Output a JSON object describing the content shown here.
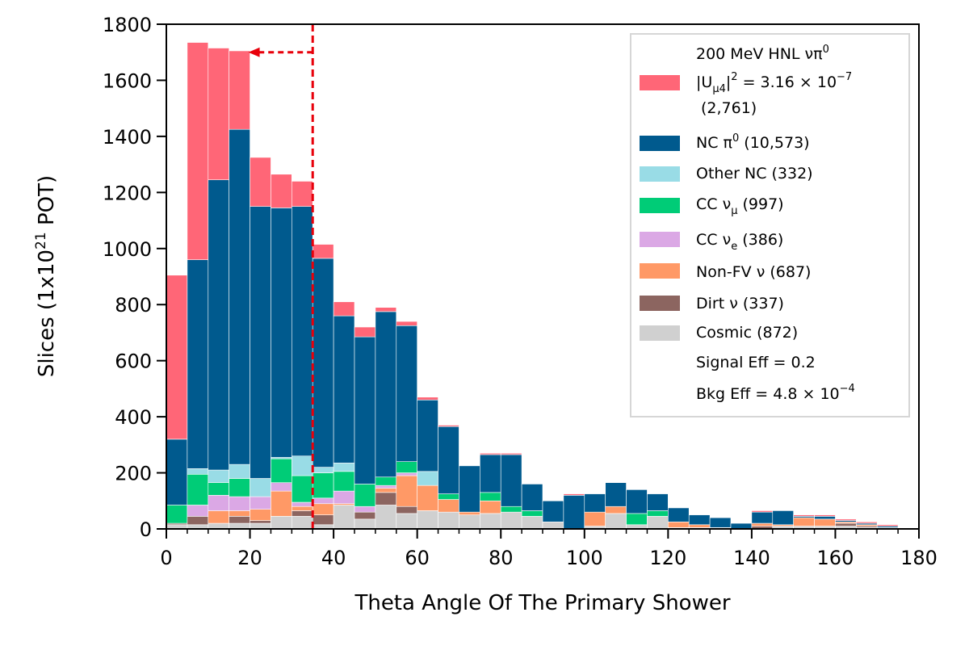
{
  "chart_data": {
    "type": "bar",
    "stacked": true,
    "xlabel": "Theta Angle Of The Primary Shower",
    "ylabel_prefix": "Slices (1x10",
    "ylabel_sup": "21",
    "ylabel_suffix": " POT)",
    "xlim": [
      0,
      180
    ],
    "ylim": [
      0,
      1800
    ],
    "x_ticks": [
      "0",
      "20",
      "40",
      "60",
      "80",
      "100",
      "120",
      "140",
      "160",
      "180"
    ],
    "y_ticks": [
      "0",
      "200",
      "400",
      "600",
      "800",
      "1000",
      "1200",
      "1400",
      "1600",
      "1800"
    ],
    "bin_width": 5,
    "bin_starts": [
      0,
      5,
      10,
      15,
      20,
      25,
      30,
      35,
      40,
      45,
      50,
      55,
      60,
      65,
      70,
      75,
      80,
      85,
      90,
      95,
      100,
      105,
      110,
      115,
      120,
      125,
      130,
      135,
      140,
      145,
      150,
      155,
      160,
      165,
      170
    ],
    "cut_line": {
      "x": 35,
      "color": "#e8000b",
      "arrow_direction": "left"
    },
    "series": [
      {
        "name": "Cosmic (872)",
        "color": "#d0d0d0",
        "values": [
          15,
          15,
          20,
          20,
          20,
          45,
          45,
          15,
          85,
          35,
          85,
          55,
          65,
          60,
          50,
          55,
          60,
          45,
          25,
          0,
          10,
          55,
          15,
          45,
          5,
          5,
          5,
          0,
          0,
          10,
          10,
          10,
          10,
          5,
          5
        ]
      },
      {
        "name": "Dirt ν (337)",
        "color": "#8c6560",
        "values": [
          5,
          30,
          0,
          25,
          10,
          0,
          20,
          35,
          0,
          25,
          45,
          25,
          0,
          0,
          0,
          0,
          0,
          0,
          0,
          0,
          0,
          0,
          0,
          0,
          0,
          0,
          0,
          0,
          10,
          0,
          0,
          0,
          10,
          5,
          0
        ]
      },
      {
        "name": "Non-FV ν (687)",
        "color": "#ff9966",
        "values": [
          0,
          0,
          45,
          20,
          40,
          90,
          15,
          40,
          5,
          0,
          15,
          110,
          90,
          45,
          10,
          45,
          0,
          0,
          0,
          0,
          50,
          25,
          0,
          0,
          20,
          10,
          0,
          0,
          10,
          5,
          30,
          25,
          5,
          5,
          0
        ]
      },
      {
        "name": "CC νe (386)",
        "color": "#dba8e5",
        "values": [
          0,
          40,
          55,
          50,
          45,
          30,
          15,
          20,
          45,
          20,
          10,
          10,
          0,
          0,
          0,
          0,
          0,
          0,
          0,
          0,
          0,
          0,
          0,
          0,
          0,
          0,
          0,
          0,
          0,
          0,
          0,
          0,
          0,
          0,
          0
        ]
      },
      {
        "name": "CC νμ (997)",
        "color": "#00cc77",
        "values": [
          65,
          110,
          45,
          65,
          0,
          85,
          95,
          90,
          70,
          80,
          30,
          40,
          0,
          20,
          0,
          30,
          20,
          20,
          0,
          0,
          0,
          0,
          40,
          20,
          0,
          0,
          0,
          0,
          0,
          0,
          0,
          0,
          0,
          0,
          0
        ]
      },
      {
        "name": "Other NC (332)",
        "color": "#99dce6",
        "values": [
          0,
          20,
          45,
          50,
          65,
          5,
          70,
          20,
          30,
          0,
          0,
          0,
          50,
          0,
          0,
          0,
          0,
          0,
          0,
          0,
          0,
          0,
          0,
          0,
          0,
          0,
          0,
          0,
          0,
          0,
          0,
          0,
          0,
          0,
          0
        ]
      },
      {
        "name": "NC π0 (10,573)",
        "color": "#005a8e",
        "values": [
          235,
          745,
          1035,
          1195,
          970,
          890,
          890,
          745,
          525,
          525,
          590,
          485,
          255,
          240,
          165,
          135,
          185,
          95,
          75,
          120,
          65,
          85,
          85,
          60,
          50,
          35,
          35,
          20,
          40,
          50,
          5,
          10,
          5,
          5,
          5
        ]
      },
      {
        "name": "200 MeV HNL νπ0 |Uμ4|² = 3.16×10⁻⁷ (2,761)",
        "color": "#ff6677",
        "values": [
          585,
          775,
          470,
          280,
          175,
          120,
          90,
          50,
          50,
          35,
          15,
          15,
          10,
          5,
          0,
          5,
          5,
          0,
          0,
          5,
          0,
          0,
          0,
          0,
          0,
          0,
          0,
          0,
          5,
          0,
          5,
          5,
          5,
          5,
          5
        ]
      }
    ],
    "legend": {
      "position": "top-right",
      "hnl_line1": "200 MeV HNL νπ",
      "hnl_line1_sup": "0",
      "hnl_line2": "|U",
      "hnl_line2_sub": "μ4",
      "hnl_line2_mid": "|",
      "hnl_line2_sup": "2",
      "hnl_line2_tail": " = 3.16 × 10",
      "hnl_line2_exp": "−7",
      "hnl_line3": "(2,761)",
      "nc_pi0_prefix": "NC π",
      "nc_pi0_sup": "0",
      "nc_pi0_suffix": " (10,573)",
      "other_nc": "Other NC (332)",
      "cc_numu_prefix": "CC ν",
      "cc_numu_sub": "μ",
      "cc_numu_suffix": " (997)",
      "cc_nue_prefix": "CC ν",
      "cc_nue_sub": "e",
      "cc_nue_suffix": " (386)",
      "nonfv": "Non-FV ν (687)",
      "dirt": "Dirt ν (337)",
      "cosmic": "Cosmic (872)",
      "signal_eff": "Signal Eff = 0.2",
      "bkg_eff_prefix": "Bkg Eff = 4.8 × 10",
      "bkg_eff_exp": "−4"
    }
  }
}
